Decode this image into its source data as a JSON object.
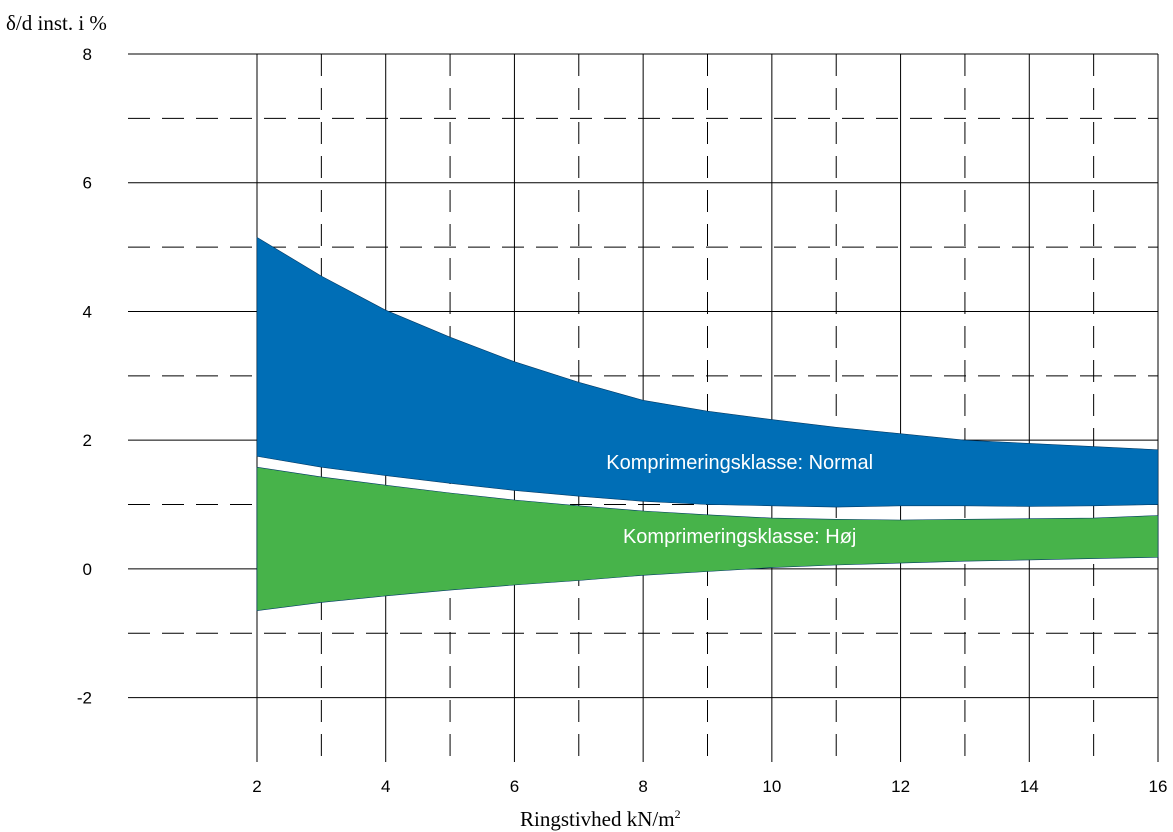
{
  "chart_data": {
    "type": "area",
    "ylabel": "δ/d inst. i %",
    "xlabel": "Ringstivhed kN/m",
    "xlabel_superscript": "2",
    "xlim": [
      2,
      16
    ],
    "ylim": [
      -3,
      8
    ],
    "x_ticks": [
      2,
      4,
      6,
      8,
      10,
      12,
      14,
      16
    ],
    "y_ticks": [
      -2,
      0,
      2,
      4,
      6,
      8
    ],
    "x_tick_labels": [
      "2",
      "4",
      "6",
      "8",
      "10",
      "12",
      "14",
      "16"
    ],
    "y_tick_labels": [
      "-2",
      "0",
      "2",
      "4",
      "6",
      "8"
    ],
    "grid": true,
    "series": [
      {
        "name": "Komprimeringsklasse: Normal",
        "color": "#006eb6",
        "x": [
          2,
          3,
          4,
          5,
          6,
          7,
          8,
          9,
          10,
          11,
          12,
          13,
          14,
          15,
          16
        ],
        "upper": [
          5.15,
          4.55,
          4.02,
          3.6,
          3.22,
          2.9,
          2.62,
          2.45,
          2.32,
          2.2,
          2.1,
          2.0,
          1.95,
          1.9,
          1.85
        ],
        "lower": [
          1.75,
          1.58,
          1.45,
          1.33,
          1.22,
          1.13,
          1.05,
          1.0,
          0.98,
          0.96,
          0.98,
          0.98,
          0.97,
          0.98,
          1.0
        ]
      },
      {
        "name": "Komprimeringsklasse: Høj",
        "color": "#47b34a",
        "x": [
          2,
          3,
          4,
          5,
          6,
          7,
          8,
          9,
          10,
          11,
          12,
          13,
          14,
          15,
          16
        ],
        "upper": [
          1.58,
          1.43,
          1.3,
          1.18,
          1.07,
          0.98,
          0.9,
          0.84,
          0.79,
          0.77,
          0.76,
          0.77,
          0.78,
          0.79,
          0.83
        ],
        "lower": [
          -0.65,
          -0.52,
          -0.42,
          -0.33,
          -0.25,
          -0.18,
          -0.1,
          -0.04,
          0.02,
          0.06,
          0.09,
          0.12,
          0.14,
          0.16,
          0.18
        ]
      }
    ]
  }
}
